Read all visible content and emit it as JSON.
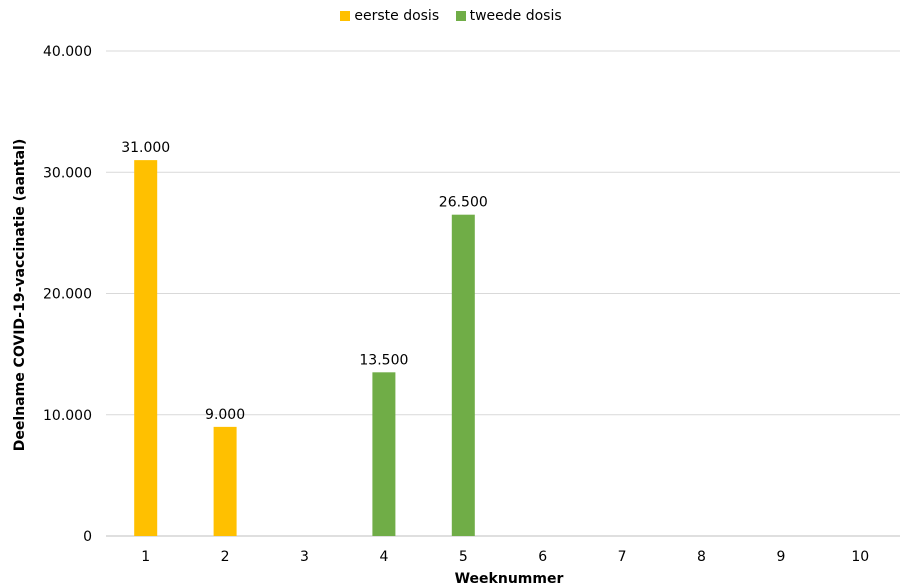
{
  "chart_data": {
    "type": "bar",
    "title": "",
    "xlabel": "Weeknummer",
    "ylabel": "Deelname COVID-19-vaccinatie  (aantal)",
    "ylim": [
      0,
      40000
    ],
    "yticks": [
      0,
      10000,
      20000,
      30000,
      40000
    ],
    "ytick_labels": [
      "0",
      "10.000",
      "20.000",
      "30.000",
      "40.000"
    ],
    "categories": [
      "1",
      "2",
      "3",
      "4",
      "5",
      "6",
      "7",
      "8",
      "9",
      "10"
    ],
    "grid": true,
    "legend_position": "top-center",
    "series": [
      {
        "name": "eerste dosis",
        "color": "#FFC000",
        "values": [
          31000,
          9000,
          null,
          null,
          null,
          null,
          null,
          null,
          null,
          null
        ],
        "data_labels": [
          "31.000",
          "9.000",
          null,
          null,
          null,
          null,
          null,
          null,
          null,
          null
        ]
      },
      {
        "name": "tweede dosis",
        "color": "#70AD47",
        "values": [
          null,
          null,
          null,
          13500,
          26500,
          null,
          null,
          null,
          null,
          null
        ],
        "data_labels": [
          null,
          null,
          null,
          "13.500",
          "26.500",
          null,
          null,
          null,
          null,
          null
        ]
      }
    ]
  }
}
